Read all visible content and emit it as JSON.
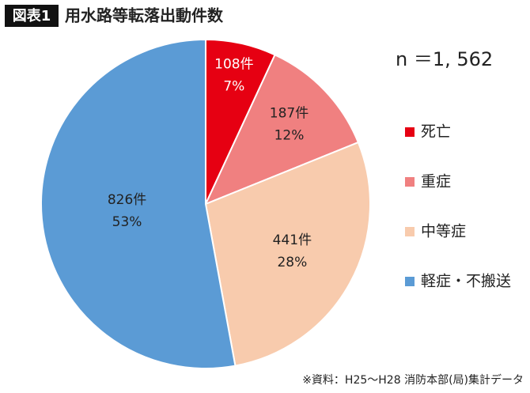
{
  "chart_data": {
    "type": "pie",
    "badge": "図表1",
    "title": "用水路等転落出動件数",
    "annotation": "n ＝1, 562",
    "source": "※資料：H25〜H28 消防本部(局)集計データ",
    "categories": [
      "死亡",
      "重症",
      "中等症",
      "軽症・不搬送"
    ],
    "values": [
      108,
      187,
      441,
      826
    ],
    "value_labels": [
      "108件",
      "187件",
      "441件",
      "826件"
    ],
    "percent_labels": [
      "7%",
      "12%",
      "28%",
      "53%"
    ],
    "colors": [
      "#e60012",
      "#f08080",
      "#f8cbad",
      "#5b9bd5"
    ],
    "label_colors": [
      "#ffffff",
      "#222222",
      "#222222",
      "#222222"
    ]
  }
}
